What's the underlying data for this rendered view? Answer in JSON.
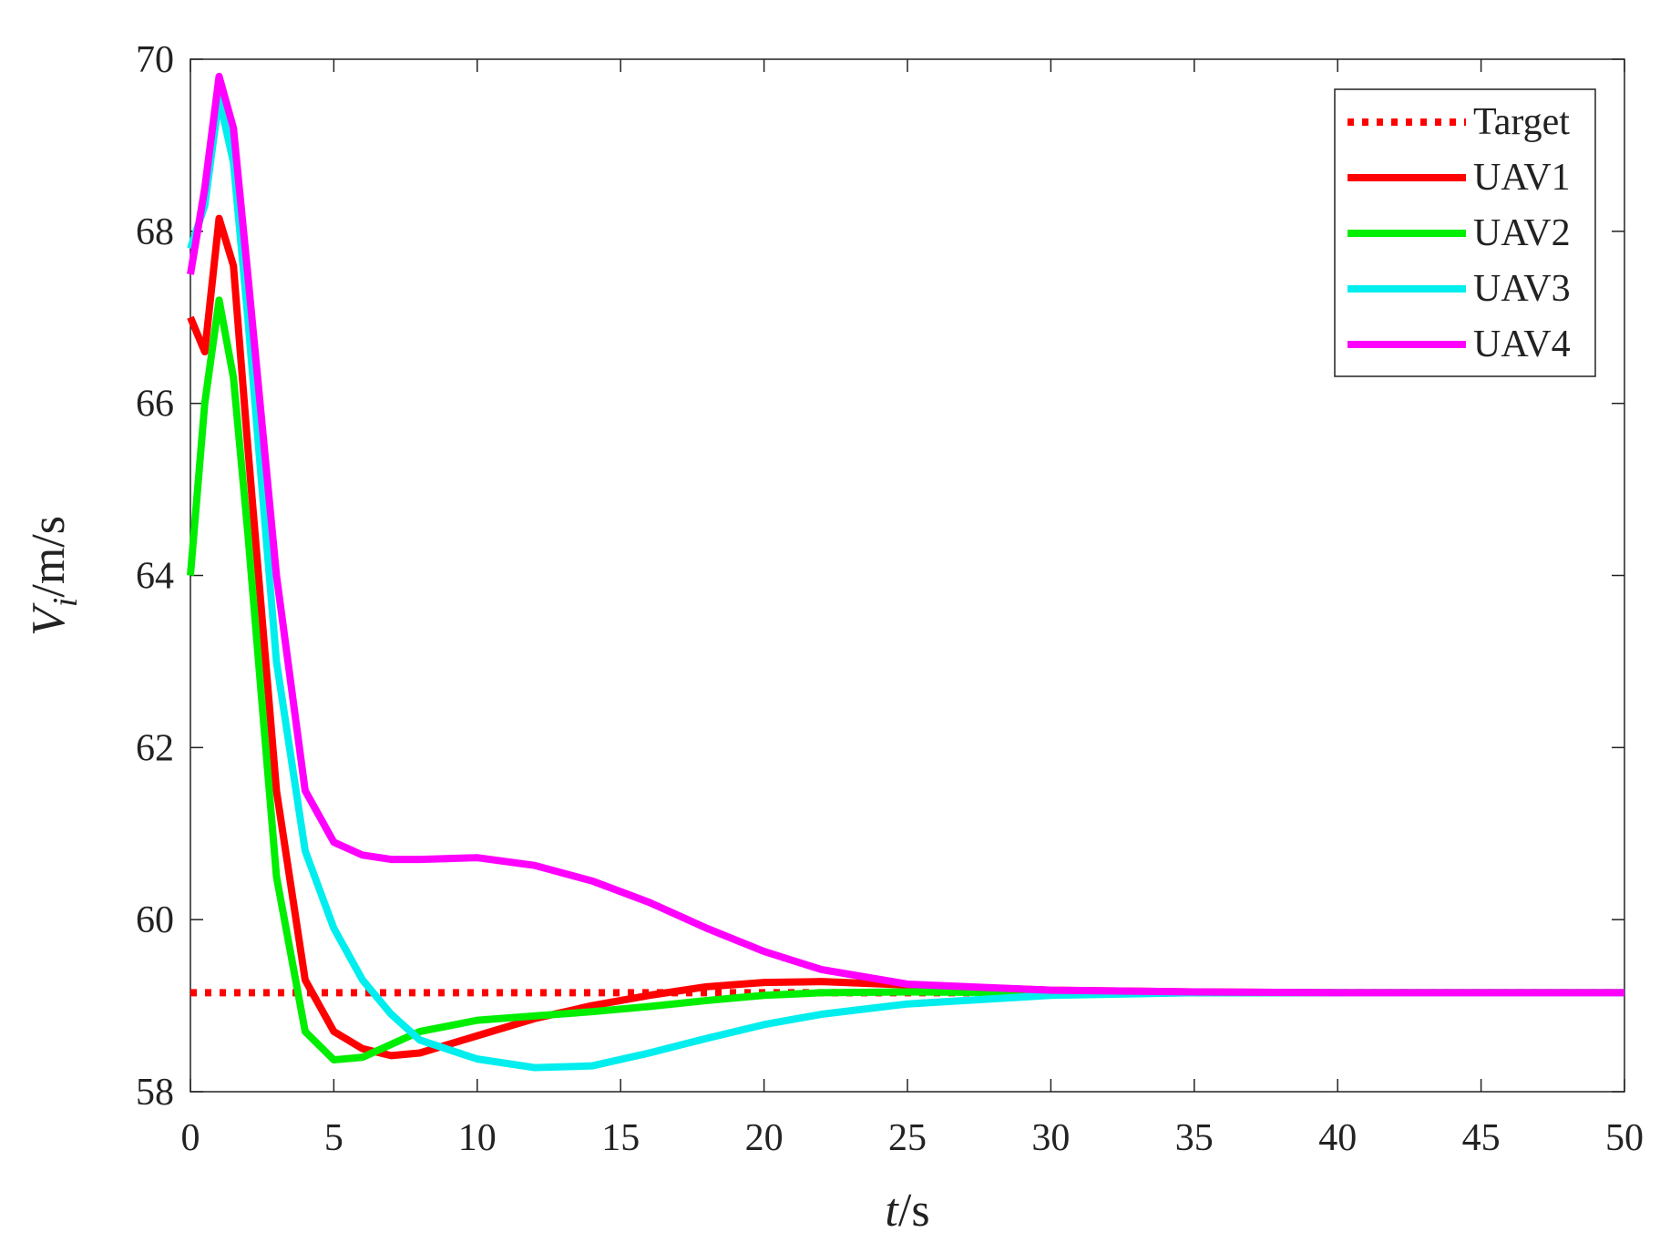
{
  "chart_data": {
    "type": "line",
    "xlabel": [
      "t",
      "/s"
    ],
    "ylabel": [
      "V",
      "i",
      "/m/s"
    ],
    "xlim": [
      0,
      50
    ],
    "xticks": [
      0,
      5,
      10,
      15,
      20,
      25,
      30,
      35,
      40,
      45,
      50
    ],
    "ylim": [
      58,
      70
    ],
    "yticks": [
      58,
      60,
      62,
      64,
      66,
      68,
      70
    ],
    "legend": "upper right",
    "series": [
      {
        "name": "Target",
        "color": "#ff0000",
        "style": "dotted",
        "x": [
          0,
          50
        ],
        "values": [
          59.15,
          59.15
        ]
      },
      {
        "name": "UAV1",
        "color": "#ff0000",
        "style": "solid",
        "x": [
          0,
          0.5,
          1,
          1.5,
          2,
          3,
          4,
          5,
          6,
          7,
          8,
          10,
          12,
          14,
          16,
          18,
          20,
          22,
          25,
          30,
          35,
          40,
          45,
          50
        ],
        "values": [
          67,
          66.6,
          68.15,
          67.6,
          65.5,
          61.5,
          59.3,
          58.7,
          58.5,
          58.42,
          58.45,
          58.65,
          58.85,
          59.0,
          59.12,
          59.22,
          59.27,
          59.28,
          59.24,
          59.18,
          59.16,
          59.15,
          59.15,
          59.15
        ]
      },
      {
        "name": "UAV2",
        "color": "#00ee00",
        "style": "solid",
        "x": [
          0,
          0.5,
          1,
          1.5,
          2,
          3,
          4,
          5,
          6,
          7,
          8,
          10,
          12,
          14,
          16,
          18,
          20,
          22,
          25,
          30,
          35,
          40,
          45,
          50
        ],
        "values": [
          64,
          66,
          67.2,
          66.3,
          64.5,
          60.5,
          58.7,
          58.37,
          58.4,
          58.55,
          58.7,
          58.83,
          58.88,
          58.93,
          58.99,
          59.06,
          59.12,
          59.15,
          59.16,
          59.15,
          59.15,
          59.15,
          59.15,
          59.15
        ]
      },
      {
        "name": "UAV3",
        "color": "#00eeee",
        "style": "solid",
        "x": [
          0,
          0.5,
          1,
          1.5,
          2,
          3,
          4,
          5,
          6,
          7,
          8,
          10,
          12,
          14,
          16,
          18,
          20,
          22,
          25,
          30,
          35,
          40,
          45,
          50
        ],
        "values": [
          67.8,
          68.3,
          69.55,
          68.8,
          67,
          63,
          60.8,
          59.9,
          59.3,
          58.9,
          58.6,
          58.38,
          58.28,
          58.3,
          58.45,
          58.62,
          58.78,
          58.9,
          59.02,
          59.12,
          59.15,
          59.15,
          59.15,
          59.15
        ]
      },
      {
        "name": "UAV4",
        "color": "#ff00ff",
        "style": "solid",
        "x": [
          0,
          0.5,
          1,
          1.5,
          2,
          3,
          4,
          5,
          6,
          7,
          8,
          10,
          12,
          14,
          16,
          18,
          20,
          22,
          25,
          30,
          35,
          40,
          45,
          50
        ],
        "values": [
          67.5,
          68.5,
          69.8,
          69.2,
          67.5,
          64,
          61.5,
          60.9,
          60.75,
          60.7,
          60.7,
          60.72,
          60.63,
          60.45,
          60.2,
          59.9,
          59.63,
          59.42,
          59.25,
          59.18,
          59.16,
          59.15,
          59.15,
          59.15
        ]
      }
    ]
  }
}
